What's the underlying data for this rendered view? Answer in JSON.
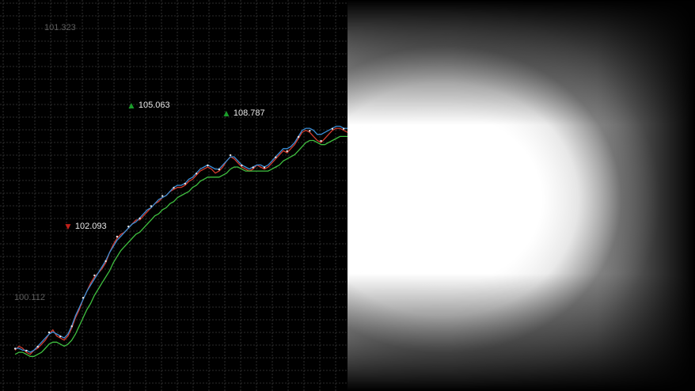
{
  "chart_data": {
    "type": "line",
    "title": "",
    "xlabel": "",
    "ylabel": "",
    "grid": true,
    "y_labels": [
      "101.323",
      "100.112"
    ],
    "x": [
      0,
      1,
      2,
      3,
      4,
      5,
      6,
      7,
      8,
      9,
      10,
      11,
      12,
      13,
      14,
      15,
      16,
      17,
      18,
      19,
      20,
      21,
      22,
      23,
      24,
      25,
      26,
      27,
      28,
      29,
      30,
      31,
      32,
      33,
      34,
      35,
      36,
      37,
      38,
      39,
      40,
      41,
      42,
      43,
      44,
      45,
      46,
      47,
      48,
      49,
      50,
      51,
      52,
      53,
      54,
      55,
      56,
      57,
      58,
      59,
      60,
      61,
      62,
      63,
      64,
      65,
      66,
      67,
      68,
      69,
      70,
      71,
      72,
      73,
      74,
      75,
      76,
      77,
      78,
      79,
      80,
      81,
      82,
      83,
      84,
      85,
      86,
      87,
      88
    ],
    "series": [
      {
        "color": "#d23b2e",
        "values": [
          100.2,
          100.22,
          100.21,
          100.19,
          100.18,
          100.2,
          100.21,
          100.23,
          100.25,
          100.28,
          100.3,
          100.27,
          100.26,
          100.25,
          100.27,
          100.31,
          100.36,
          100.4,
          100.45,
          100.49,
          100.53,
          100.56,
          100.58,
          100.6,
          100.63,
          100.68,
          100.72,
          100.75,
          100.77,
          100.78,
          100.8,
          100.82,
          100.84,
          100.84,
          100.86,
          100.88,
          100.9,
          100.92,
          100.93,
          100.95,
          100.96,
          100.98,
          100.99,
          101.0,
          101.0,
          101.01,
          101.03,
          101.04,
          101.06,
          101.08,
          101.09,
          101.1,
          101.09,
          101.07,
          101.08,
          101.1,
          101.13,
          101.15,
          101.14,
          101.12,
          101.1,
          101.09,
          101.08,
          101.09,
          101.11,
          101.1,
          101.09,
          101.1,
          101.12,
          101.14,
          101.16,
          101.18,
          101.17,
          101.19,
          101.21,
          101.24,
          101.27,
          101.28,
          101.27,
          101.25,
          101.23,
          101.22,
          101.24,
          101.26,
          101.28,
          101.29,
          101.29,
          101.28,
          101.27
        ]
      },
      {
        "color": "#3a8fd8",
        "values": [
          100.21,
          100.21,
          100.2,
          100.2,
          100.19,
          100.2,
          100.22,
          100.24,
          100.26,
          100.28,
          100.29,
          100.28,
          100.27,
          100.26,
          100.28,
          100.32,
          100.37,
          100.41,
          100.45,
          100.49,
          100.52,
          100.55,
          100.58,
          100.61,
          100.64,
          100.68,
          100.71,
          100.74,
          100.76,
          100.78,
          100.8,
          100.82,
          100.83,
          100.85,
          100.87,
          100.89,
          100.9,
          100.92,
          100.94,
          100.95,
          100.96,
          100.98,
          101.0,
          101.01,
          101.01,
          101.02,
          101.04,
          101.05,
          101.07,
          101.09,
          101.1,
          101.11,
          101.1,
          101.09,
          101.09,
          101.11,
          101.13,
          101.15,
          101.15,
          101.13,
          101.11,
          101.1,
          101.09,
          101.1,
          101.11,
          101.11,
          101.1,
          101.11,
          101.13,
          101.15,
          101.17,
          101.19,
          101.19,
          101.2,
          101.22,
          101.25,
          101.28,
          101.29,
          101.29,
          101.28,
          101.26,
          101.26,
          101.27,
          101.28,
          101.29,
          101.3,
          101.3,
          101.29,
          101.29
        ]
      },
      {
        "color": "#3fbf3f",
        "values": [
          100.18,
          100.19,
          100.19,
          100.18,
          100.17,
          100.17,
          100.18,
          100.19,
          100.21,
          100.23,
          100.24,
          100.24,
          100.23,
          100.22,
          100.23,
          100.25,
          100.28,
          100.32,
          100.36,
          100.4,
          100.43,
          100.47,
          100.5,
          100.53,
          100.56,
          100.59,
          100.63,
          100.66,
          100.69,
          100.71,
          100.73,
          100.75,
          100.77,
          100.78,
          100.8,
          100.82,
          100.84,
          100.86,
          100.87,
          100.89,
          100.9,
          100.92,
          100.93,
          100.95,
          100.96,
          100.97,
          100.98,
          101.0,
          101.01,
          101.03,
          101.04,
          101.05,
          101.05,
          101.05,
          101.05,
          101.06,
          101.07,
          101.09,
          101.1,
          101.1,
          101.09,
          101.08,
          101.08,
          101.08,
          101.08,
          101.08,
          101.08,
          101.08,
          101.09,
          101.1,
          101.11,
          101.13,
          101.14,
          101.15,
          101.16,
          101.18,
          101.2,
          101.22,
          101.23,
          101.23,
          101.22,
          101.21,
          101.21,
          101.22,
          101.23,
          101.24,
          101.25,
          101.25,
          101.25
        ]
      }
    ],
    "markers": [
      {
        "label": "102.093",
        "direction": "down",
        "color": "#c0201a",
        "x": 17,
        "y": 100.33
      },
      {
        "label": "105.063",
        "direction": "up",
        "color": "#1a9c2a",
        "x": 35,
        "y": 101.63
      },
      {
        "label": "108.787",
        "direction": "up",
        "color": "#1a9c2a",
        "x": 64,
        "y": 101.53
      }
    ],
    "ylim": [
      100.0,
      101.92
    ],
    "xlim": [
      -4,
      88
    ]
  }
}
